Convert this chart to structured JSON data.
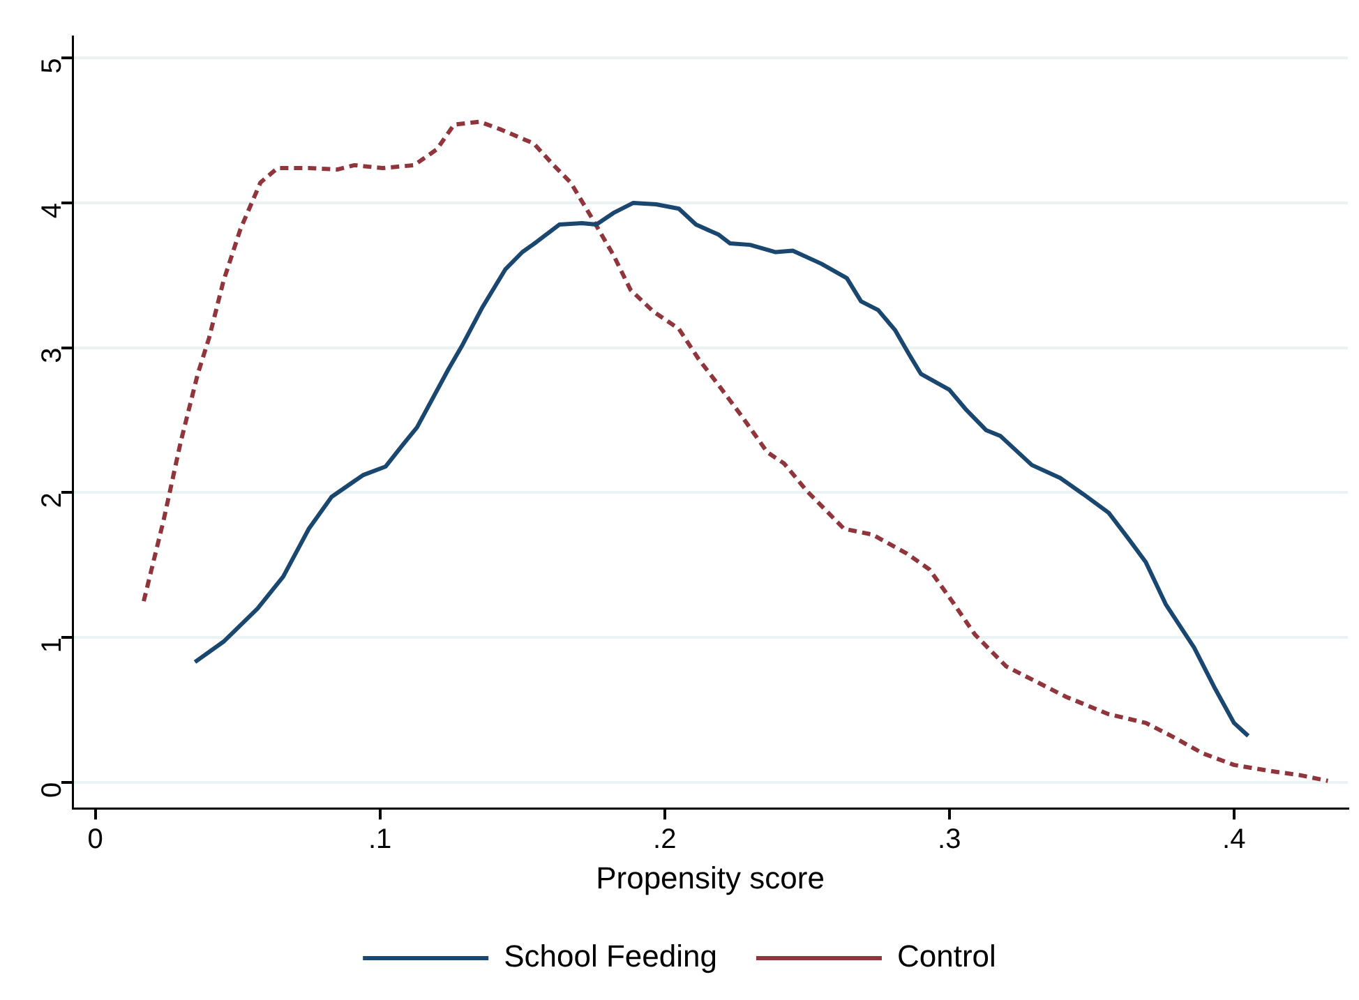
{
  "chart_data": {
    "type": "line",
    "xlabel": "Propensity score",
    "xlim": [
      -0.008,
      0.44
    ],
    "xticks": [
      0,
      {
        "value": 0.1,
        "label": ".1"
      },
      {
        "value": 0.2,
        "label": ".2"
      },
      {
        "value": 0.3,
        "label": ".3"
      },
      {
        "value": 0.4,
        "label": ".4"
      }
    ],
    "ylim": [
      -0.18,
      5.15
    ],
    "yticks": [
      0,
      1,
      2,
      3,
      4,
      5
    ],
    "grid": "y",
    "legend": "bottom",
    "marker": "none",
    "series": [
      {
        "name": "School Feeding",
        "color": "#1a476f",
        "line_style": "solid",
        "x": [
          0.035,
          0.045,
          0.057,
          0.066,
          0.075,
          0.083,
          0.094,
          0.102,
          0.108,
          0.113,
          0.124,
          0.129,
          0.136,
          0.144,
          0.15,
          0.155,
          0.163,
          0.171,
          0.176,
          0.182,
          0.189,
          0.197,
          0.205,
          0.211,
          0.219,
          0.223,
          0.23,
          0.239,
          0.245,
          0.255,
          0.264,
          0.269,
          0.275,
          0.281,
          0.286,
          0.29,
          0.3,
          0.306,
          0.313,
          0.318,
          0.329,
          0.339,
          0.347,
          0.356,
          0.363,
          0.369,
          0.376,
          0.386,
          0.393,
          0.4,
          0.405
        ],
        "values": [
          0.83,
          0.97,
          1.2,
          1.42,
          1.75,
          1.97,
          2.12,
          2.18,
          2.33,
          2.45,
          2.85,
          3.02,
          3.28,
          3.54,
          3.66,
          3.73,
          3.85,
          3.86,
          3.85,
          3.93,
          4.0,
          3.99,
          3.96,
          3.85,
          3.78,
          3.72,
          3.71,
          3.66,
          3.67,
          3.58,
          3.48,
          3.32,
          3.26,
          3.12,
          2.95,
          2.82,
          2.71,
          2.57,
          2.43,
          2.39,
          2.19,
          2.1,
          1.99,
          1.86,
          1.68,
          1.52,
          1.23,
          0.93,
          0.66,
          0.41,
          0.32
        ]
      },
      {
        "name": "Control",
        "color": "#90353b",
        "line_style": "dashed",
        "x": [
          0.017,
          0.024,
          0.03,
          0.036,
          0.04,
          0.045,
          0.051,
          0.058,
          0.064,
          0.075,
          0.085,
          0.091,
          0.101,
          0.112,
          0.12,
          0.126,
          0.135,
          0.142,
          0.154,
          0.161,
          0.167,
          0.174,
          0.182,
          0.188,
          0.196,
          0.205,
          0.212,
          0.219,
          0.227,
          0.236,
          0.242,
          0.25,
          0.263,
          0.273,
          0.285,
          0.293,
          0.301,
          0.309,
          0.32,
          0.33,
          0.341,
          0.356,
          0.369,
          0.378,
          0.389,
          0.4,
          0.412,
          0.423,
          0.433
        ],
        "values": [
          1.25,
          1.81,
          2.35,
          2.82,
          3.07,
          3.46,
          3.82,
          4.14,
          4.24,
          4.24,
          4.23,
          4.26,
          4.24,
          4.26,
          4.37,
          4.54,
          4.56,
          4.51,
          4.41,
          4.26,
          4.14,
          3.91,
          3.64,
          3.4,
          3.25,
          3.13,
          2.92,
          2.74,
          2.53,
          2.28,
          2.2,
          2.01,
          1.75,
          1.71,
          1.58,
          1.47,
          1.25,
          1.02,
          0.8,
          0.7,
          0.59,
          0.47,
          0.41,
          0.32,
          0.2,
          0.12,
          0.08,
          0.05,
          0.01
        ]
      }
    ]
  }
}
